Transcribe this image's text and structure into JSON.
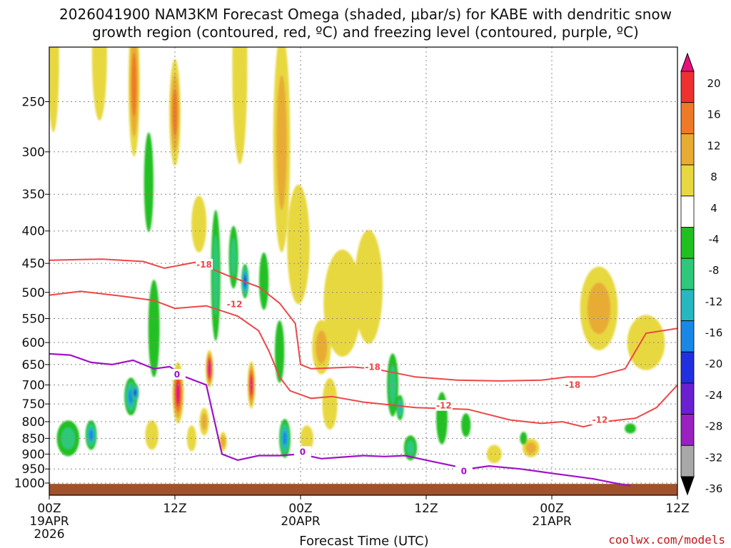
{
  "chart_data": {
    "type": "heatmap",
    "title_lines": [
      "2026041900 NAM3KM Forecast Omega (shaded, μbar/s) for KABE with dendritic snow",
      "growth region (contoured, red, ºC) and freezing level (contoured, purple, ºC)"
    ],
    "xlabel": "Forecast Time (UTC)",
    "x_range_hours": [
      0,
      60
    ],
    "x_ticks": [
      {
        "hour": 0,
        "lines": [
          "00Z",
          "19APR",
          "2026"
        ]
      },
      {
        "hour": 12,
        "lines": [
          "12Z"
        ]
      },
      {
        "hour": 24,
        "lines": [
          "00Z",
          "20APR"
        ]
      },
      {
        "hour": 36,
        "lines": [
          "12Z"
        ]
      },
      {
        "hour": 48,
        "lines": [
          "00Z",
          "21APR"
        ]
      },
      {
        "hour": 60,
        "lines": [
          "12Z"
        ]
      }
    ],
    "y_range_hPa": [
      1025,
      180
    ],
    "y_ticks": [
      250,
      300,
      350,
      400,
      450,
      500,
      550,
      600,
      650,
      700,
      750,
      800,
      850,
      900,
      950,
      1000
    ],
    "grid": true,
    "colorbar": {
      "labels": [
        "20",
        "16",
        "12",
        "8",
        "4",
        "-4",
        "-8",
        "-12",
        "-16",
        "-20",
        "-24",
        "-28",
        "-32",
        "-36"
      ],
      "bins": [
        {
          "lo": 20,
          "hi": 24,
          "color": "#e8107e"
        },
        {
          "lo": 16,
          "hi": 20,
          "color": "#ee3030"
        },
        {
          "lo": 12,
          "hi": 16,
          "color": "#ee7a28"
        },
        {
          "lo": 8,
          "hi": 12,
          "color": "#e8ac35"
        },
        {
          "lo": 4,
          "hi": 8,
          "color": "#e8d840"
        },
        {
          "lo": -4,
          "hi": 4,
          "color": "#ffffff"
        },
        {
          "lo": -8,
          "hi": -4,
          "color": "#20c020"
        },
        {
          "lo": -12,
          "hi": -8,
          "color": "#2ec87a"
        },
        {
          "lo": -16,
          "hi": -12,
          "color": "#25b8c0"
        },
        {
          "lo": -20,
          "hi": -16,
          "color": "#1888e8"
        },
        {
          "lo": -24,
          "hi": -20,
          "color": "#2030e0"
        },
        {
          "lo": -28,
          "hi": -24,
          "color": "#6a20d0"
        },
        {
          "lo": -32,
          "hi": -28,
          "color": "#9a20c0"
        },
        {
          "lo": -36,
          "hi": -32,
          "color": "#a8a8a8"
        },
        {
          "lo": -40,
          "hi": -36,
          "color": "#000000"
        }
      ]
    },
    "omega_cells": [
      {
        "t": 0.4,
        "p": 215,
        "v": 5,
        "wt": 0.6,
        "wp": 110
      },
      {
        "t": 4.8,
        "p": 210,
        "v": 5,
        "wt": 0.8,
        "wp": 100
      },
      {
        "t": 8.1,
        "p": 235,
        "v": 13,
        "wt": 0.6,
        "wp": 120
      },
      {
        "t": 12.0,
        "p": 260,
        "v": 13,
        "wt": 0.6,
        "wp": 100
      },
      {
        "t": 9.5,
        "p": 335,
        "v": -6,
        "wt": 0.5,
        "wp": 120
      },
      {
        "t": 14.3,
        "p": 390,
        "v": 5,
        "wt": 0.8,
        "wp": 80
      },
      {
        "t": 18.2,
        "p": 220,
        "v": 5,
        "wt": 0.8,
        "wp": 150
      },
      {
        "t": 22.2,
        "p": 290,
        "v": 10,
        "wt": 0.9,
        "wp": 220
      },
      {
        "t": 23.8,
        "p": 420,
        "v": 5,
        "wt": 1.2,
        "wp": 180
      },
      {
        "t": 26.0,
        "p": 610,
        "v": 10,
        "wt": 1.0,
        "wp": 120
      },
      {
        "t": 28.0,
        "p": 520,
        "v": 5,
        "wt": 2.0,
        "wp": 200
      },
      {
        "t": 30.5,
        "p": 490,
        "v": 5,
        "wt": 1.5,
        "wp": 200
      },
      {
        "t": 26.8,
        "p": 750,
        "v": 5,
        "wt": 0.8,
        "wp": 140
      },
      {
        "t": 37.5,
        "p": 790,
        "v": -6,
        "wt": 0.6,
        "wp": 150
      },
      {
        "t": 42.5,
        "p": 900,
        "v": 5,
        "wt": 0.8,
        "wp": 60
      },
      {
        "t": 46.0,
        "p": 880,
        "v": 9,
        "wt": 0.9,
        "wp": 60
      },
      {
        "t": 52.5,
        "p": 530,
        "v": 8,
        "wt": 2.0,
        "wp": 160
      },
      {
        "t": 57.0,
        "p": 600,
        "v": 6,
        "wt": 2.0,
        "wp": 120
      },
      {
        "t": 1.8,
        "p": 850,
        "v": -10,
        "wt": 1.2,
        "wp": 110
      },
      {
        "t": 4.0,
        "p": 840,
        "v": -18,
        "wt": 0.6,
        "wp": 90
      },
      {
        "t": 7.8,
        "p": 730,
        "v": -16,
        "wt": 0.7,
        "wp": 100
      },
      {
        "t": 8.2,
        "p": 720,
        "v": -22,
        "wt": 0.4,
        "wp": 50
      },
      {
        "t": 9.8,
        "p": 840,
        "v": 6,
        "wt": 0.7,
        "wp": 90
      },
      {
        "t": 10.0,
        "p": 570,
        "v": -7,
        "wt": 0.6,
        "wp": 200
      },
      {
        "t": 12.3,
        "p": 720,
        "v": 20,
        "wt": 0.6,
        "wp": 160
      },
      {
        "t": 13.6,
        "p": 850,
        "v": 6,
        "wt": 0.5,
        "wp": 80
      },
      {
        "t": 15.3,
        "p": 660,
        "v": 24,
        "wt": 0.4,
        "wp": 90
      },
      {
        "t": 14.8,
        "p": 800,
        "v": 8,
        "wt": 0.5,
        "wp": 80
      },
      {
        "t": 15.9,
        "p": 470,
        "v": -8,
        "wt": 0.5,
        "wp": 220
      },
      {
        "t": 16.6,
        "p": 860,
        "v": 8,
        "wt": 0.4,
        "wp": 60
      },
      {
        "t": 17.6,
        "p": 440,
        "v": -10,
        "wt": 0.5,
        "wp": 100
      },
      {
        "t": 18.7,
        "p": 480,
        "v": -22,
        "wt": 0.4,
        "wp": 60
      },
      {
        "t": 19.3,
        "p": 700,
        "v": 22,
        "wt": 0.4,
        "wp": 120
      },
      {
        "t": 20.5,
        "p": 480,
        "v": -7,
        "wt": 0.5,
        "wp": 100
      },
      {
        "t": 22.0,
        "p": 620,
        "v": -6,
        "wt": 0.5,
        "wp": 140
      },
      {
        "t": 22.5,
        "p": 850,
        "v": -18,
        "wt": 0.6,
        "wp": 120
      },
      {
        "t": 24.6,
        "p": 850,
        "v": 6,
        "wt": 0.7,
        "wp": 80
      },
      {
        "t": 32.8,
        "p": 700,
        "v": -10,
        "wt": 0.6,
        "wp": 160
      },
      {
        "t": 33.5,
        "p": 760,
        "v": -14,
        "wt": 0.4,
        "wp": 70
      },
      {
        "t": 34.5,
        "p": 880,
        "v": -8,
        "wt": 0.7,
        "wp": 80
      },
      {
        "t": 39.8,
        "p": 810,
        "v": -7,
        "wt": 0.5,
        "wp": 70
      },
      {
        "t": 45.3,
        "p": 850,
        "v": -6,
        "wt": 0.3,
        "wp": 40
      },
      {
        "t": 55.5,
        "p": 820,
        "v": -7,
        "wt": 0.6,
        "wp": 30
      }
    ],
    "dendritic_growth_region": [
      {
        "label": "-18",
        "t": [
          0,
          5,
          9,
          11,
          14,
          17,
          20,
          22,
          23.5,
          24,
          25,
          27,
          29,
          31,
          35,
          39,
          43,
          47,
          49.5,
          52,
          55,
          57,
          60
        ],
        "p": [
          445,
          443,
          447,
          458,
          448,
          470,
          490,
          520,
          560,
          650,
          660,
          658,
          656,
          660,
          680,
          688,
          690,
          688,
          680,
          680,
          660,
          580,
          570
        ]
      },
      {
        "label": "-12",
        "t": [
          0,
          3,
          7,
          10,
          12,
          15,
          18,
          20,
          21,
          22,
          23,
          25,
          27,
          30,
          35,
          40,
          44,
          47,
          49,
          51,
          53,
          56,
          58,
          60
        ],
        "p": [
          505,
          498,
          507,
          515,
          530,
          525,
          545,
          575,
          620,
          680,
          715,
          735,
          730,
          745,
          760,
          765,
          795,
          805,
          800,
          815,
          800,
          790,
          760,
          700
        ]
      }
    ],
    "freezing_level": {
      "label": "0",
      "t": [
        0,
        2,
        4,
        6,
        8,
        10,
        11.5,
        13,
        15,
        15.8,
        16.5,
        18,
        20,
        22,
        24,
        26,
        28,
        30,
        32,
        34,
        36,
        38,
        40,
        42,
        45,
        48,
        50,
        52,
        54,
        55.5
      ],
      "p": [
        625,
        628,
        645,
        650,
        640,
        660,
        655,
        680,
        700,
        800,
        900,
        920,
        905,
        905,
        900,
        915,
        910,
        905,
        908,
        905,
        920,
        935,
        950,
        940,
        950,
        965,
        975,
        985,
        1000,
        1010
      ]
    },
    "terrain_pressure_hPa": 1003,
    "contour_labels": [
      {
        "text": "-18",
        "t": 14.8,
        "p": 452,
        "series": "dgz"
      },
      {
        "text": "-12",
        "t": 17.7,
        "p": 522,
        "series": "dgz"
      },
      {
        "text": "-18",
        "t": 30.9,
        "p": 656,
        "series": "dgz"
      },
      {
        "text": "-18",
        "t": 50.0,
        "p": 700,
        "series": "dgz"
      },
      {
        "text": "-12",
        "t": 37.7,
        "p": 755,
        "series": "dgz"
      },
      {
        "text": "-12",
        "t": 52.6,
        "p": 795,
        "series": "dgz"
      },
      {
        "text": "0",
        "t": 12.2,
        "p": 674,
        "series": "fz"
      },
      {
        "text": "0",
        "t": 24.2,
        "p": 893,
        "series": "fz"
      },
      {
        "text": "0",
        "t": 39.6,
        "p": 958,
        "series": "fz"
      }
    ]
  },
  "colors": {
    "dgz_line": "#ee4646",
    "freezing_line": "#a010c8",
    "terrain": "#a0522d",
    "grid": "#888888",
    "credit": "#c01818"
  },
  "credit": "coolwx.com/models"
}
